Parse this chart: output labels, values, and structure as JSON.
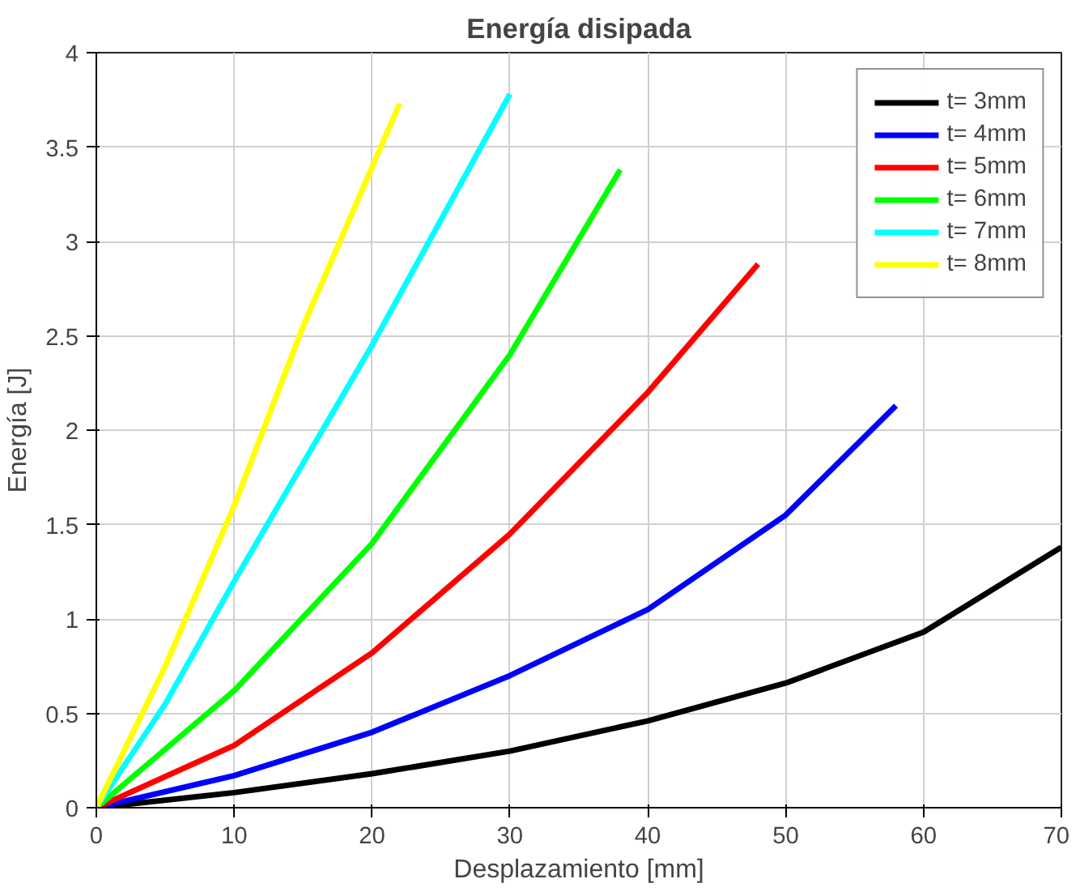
{
  "chart_data": {
    "type": "line",
    "title": "Energía disipada",
    "xlabel": "Desplazamiento [mm]",
    "ylabel": "Energía [J]",
    "xlim": [
      0,
      70
    ],
    "ylim": [
      0,
      4
    ],
    "xticks": [
      0,
      10,
      20,
      30,
      40,
      50,
      60,
      70
    ],
    "yticks": [
      0,
      0.5,
      1,
      1.5,
      2,
      2.5,
      3,
      3.5,
      4
    ],
    "grid": true,
    "legend": "top right",
    "line_style": "solid",
    "marker": "none",
    "series": [
      {
        "name": "t= 3mm",
        "color": "#000000",
        "x": [
          0,
          10,
          20,
          30,
          40,
          50,
          60,
          70
        ],
        "values": [
          0,
          0.08,
          0.18,
          0.3,
          0.46,
          0.66,
          0.93,
          1.38
        ]
      },
      {
        "name": "t= 4mm",
        "color": "#0000ff",
        "x": [
          0,
          10,
          20,
          30,
          40,
          50,
          58
        ],
        "values": [
          0,
          0.17,
          0.4,
          0.7,
          1.05,
          1.55,
          2.13
        ]
      },
      {
        "name": "t= 5mm",
        "color": "#ff0000",
        "x": [
          0,
          10,
          20,
          30,
          40,
          48
        ],
        "values": [
          0,
          0.33,
          0.82,
          1.45,
          2.2,
          2.88
        ]
      },
      {
        "name": "t= 6mm",
        "color": "#00ff00",
        "x": [
          0,
          10,
          20,
          30,
          38
        ],
        "values": [
          0,
          0.62,
          1.4,
          2.4,
          3.38
        ]
      },
      {
        "name": "t= 7mm",
        "color": "#00ffff",
        "x": [
          0,
          5,
          10,
          20,
          30
        ],
        "values": [
          0,
          0.55,
          1.2,
          2.45,
          3.78
        ]
      },
      {
        "name": "t= 8mm",
        "color": "#ffff00",
        "x": [
          0,
          5,
          10,
          15,
          22
        ],
        "values": [
          0,
          0.75,
          1.6,
          2.55,
          3.73
        ]
      }
    ]
  }
}
